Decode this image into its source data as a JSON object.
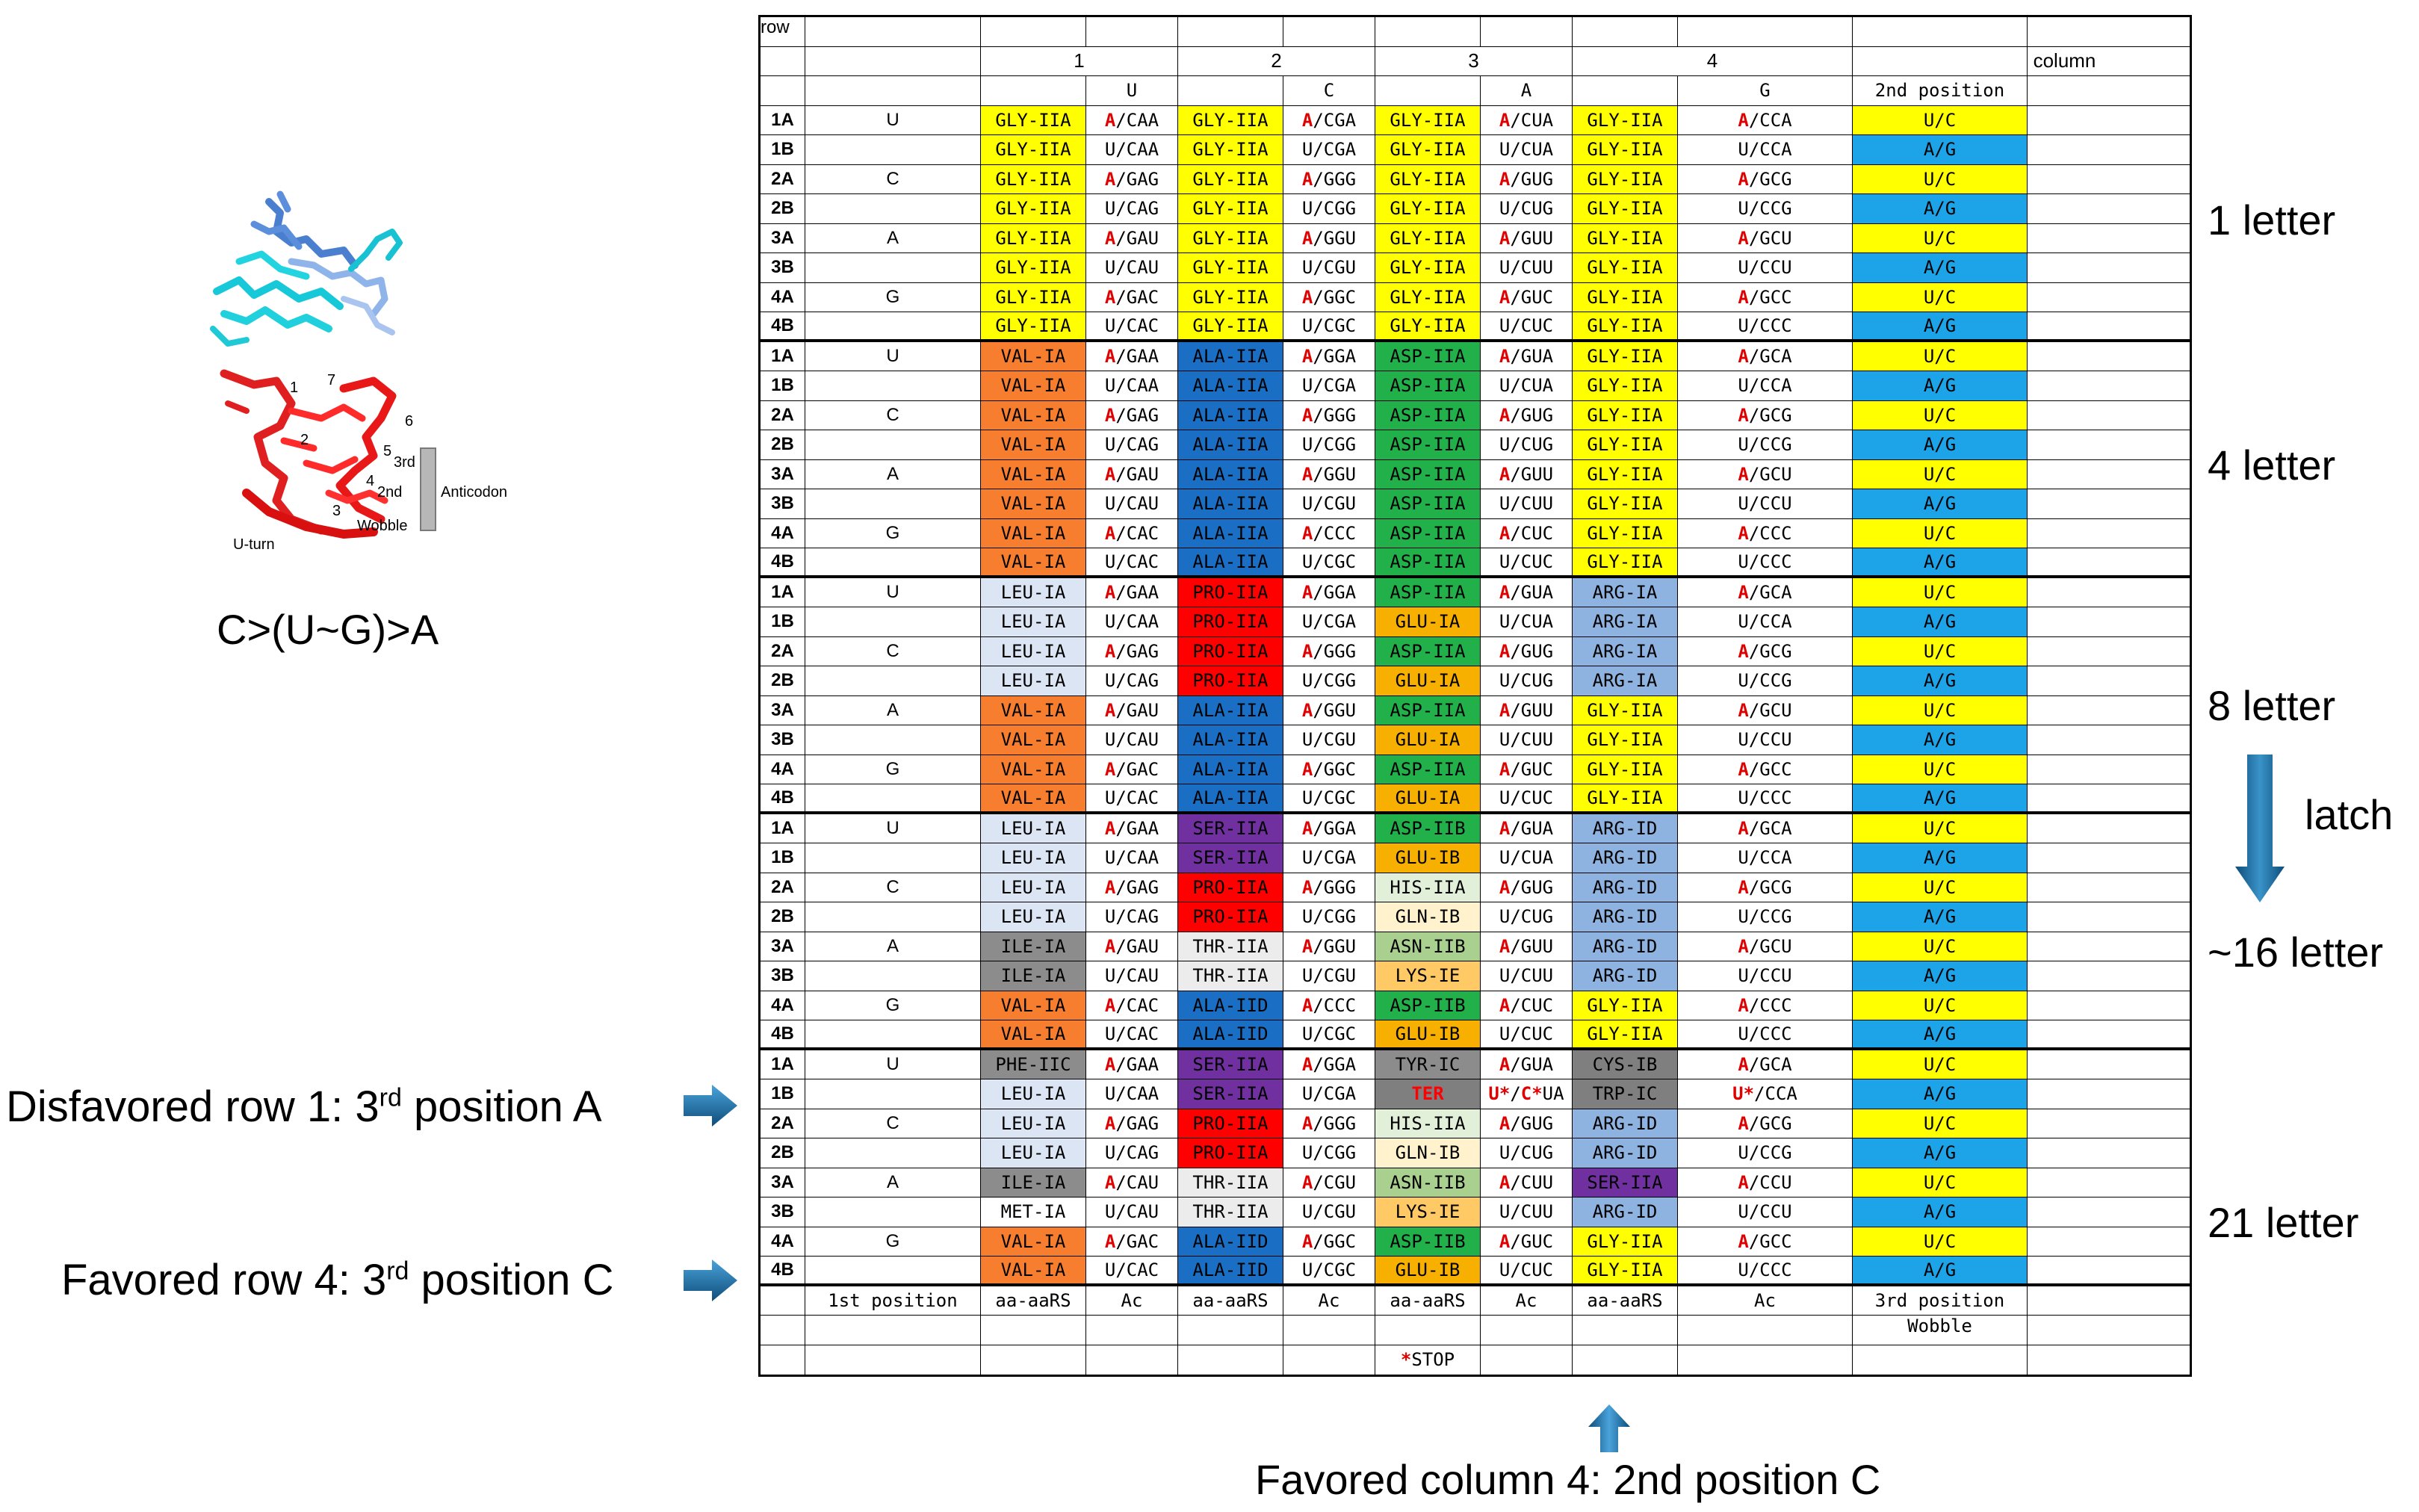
{
  "colors": {
    "GLY-IIA": "#ffff00",
    "VAL-IA": "#f77e2f",
    "ALA-IIA": "#1a6fc4",
    "ALA-IID": "#1a6fc4",
    "ASP-IIA": "#22b04a",
    "ASP-IIB": "#22b04a",
    "LEU-IA": "#dbe5f3",
    "PRO-IIA": "#ff0000",
    "GLU-IA": "#f7b000",
    "GLU-IB": "#f7b000",
    "ARG-IA": "#8fb3e0",
    "ARG-ID": "#8fb3e0",
    "SER-IIA": "#7030a0",
    "HIS-IIA": "#e2f0d9",
    "GLN-IB": "#fff2cc",
    "ILE-IA": "#8c8c8c",
    "THR-IIA": "#ececec",
    "ASN-IIB": "#a9d08e",
    "LYS-IE": "#ffc966",
    "PHE-IIC": "#8c8c8c",
    "TYR-IC": "#8c8c8c",
    "CYS-IB": "#7f7f7f",
    "TER": "#7f7f7f",
    "TRP-IC": "#7f7f7f",
    "MET-IA": "#ffffff",
    "U/C": "#ffff00",
    "A/G": "#1ca3e8"
  },
  "header": {
    "row_label": "row",
    "col_numbers": [
      "1",
      "2",
      "3",
      "4"
    ],
    "column_label": "column",
    "second_letters": [
      "U",
      "C",
      "A",
      "G"
    ],
    "second_position": "2nd position",
    "footer": [
      "1st position",
      "aa-aaRS",
      "Ac",
      "aa-aaRS",
      "Ac",
      "aa-aaRS",
      "Ac",
      "aa-aaRS",
      "Ac",
      "3rd position"
    ],
    "wobble": "Wobble",
    "stop": "*STOP"
  },
  "rows": [
    "1A",
    "1B",
    "2A",
    "2B",
    "3A",
    "3B",
    "4A",
    "4B"
  ],
  "first_pos": [
    "U",
    "",
    "C",
    "",
    "A",
    "",
    "G",
    ""
  ],
  "third": [
    "U/C",
    "A/G",
    "U/C",
    "A/G",
    "U/C",
    "A/G",
    "U/C",
    "A/G"
  ],
  "blocks": [
    {
      "label": "1 letter",
      "aa": [
        [
          "GLY-IIA",
          "GLY-IIA",
          "GLY-IIA",
          "GLY-IIA"
        ],
        [
          "GLY-IIA",
          "GLY-IIA",
          "GLY-IIA",
          "GLY-IIA"
        ],
        [
          "GLY-IIA",
          "GLY-IIA",
          "GLY-IIA",
          "GLY-IIA"
        ],
        [
          "GLY-IIA",
          "GLY-IIA",
          "GLY-IIA",
          "GLY-IIA"
        ],
        [
          "GLY-IIA",
          "GLY-IIA",
          "GLY-IIA",
          "GLY-IIA"
        ],
        [
          "GLY-IIA",
          "GLY-IIA",
          "GLY-IIA",
          "GLY-IIA"
        ],
        [
          "GLY-IIA",
          "GLY-IIA",
          "GLY-IIA",
          "GLY-IIA"
        ],
        [
          "GLY-IIA",
          "GLY-IIA",
          "GLY-IIA",
          "GLY-IIA"
        ]
      ],
      "ac": [
        [
          "A/CAA",
          "A/CGA",
          "A/CUA",
          "A/CCA"
        ],
        [
          "U/CAA",
          "U/CGA",
          "U/CUA",
          "U/CCA"
        ],
        [
          "A/GAG",
          "A/GGG",
          "A/GUG",
          "A/GCG"
        ],
        [
          "U/CAG",
          "U/CGG",
          "U/CUG",
          "U/CCG"
        ],
        [
          "A/GAU",
          "A/GGU",
          "A/GUU",
          "A/GCU"
        ],
        [
          "U/CAU",
          "U/CGU",
          "U/CUU",
          "U/CCU"
        ],
        [
          "A/GAC",
          "A/GGC",
          "A/GUC",
          "A/GCC"
        ],
        [
          "U/CAC",
          "U/CGC",
          "U/CUC",
          "U/CCC"
        ]
      ]
    },
    {
      "label": "4 letter",
      "aa": [
        [
          "VAL-IA",
          "ALA-IIA",
          "ASP-IIA",
          "GLY-IIA"
        ],
        [
          "VAL-IA",
          "ALA-IIA",
          "ASP-IIA",
          "GLY-IIA"
        ],
        [
          "VAL-IA",
          "ALA-IIA",
          "ASP-IIA",
          "GLY-IIA"
        ],
        [
          "VAL-IA",
          "ALA-IIA",
          "ASP-IIA",
          "GLY-IIA"
        ],
        [
          "VAL-IA",
          "ALA-IIA",
          "ASP-IIA",
          "GLY-IIA"
        ],
        [
          "VAL-IA",
          "ALA-IIA",
          "ASP-IIA",
          "GLY-IIA"
        ],
        [
          "VAL-IA",
          "ALA-IIA",
          "ASP-IIA",
          "GLY-IIA"
        ],
        [
          "VAL-IA",
          "ALA-IIA",
          "ASP-IIA",
          "GLY-IIA"
        ]
      ],
      "ac": [
        [
          "A/GAA",
          "A/GGA",
          "A/GUA",
          "A/GCA"
        ],
        [
          "U/CAA",
          "U/CGA",
          "U/CUA",
          "U/CCA"
        ],
        [
          "A/GAG",
          "A/GGG",
          "A/GUG",
          "A/GCG"
        ],
        [
          "U/CAG",
          "U/CGG",
          "U/CUG",
          "U/CCG"
        ],
        [
          "A/GAU",
          "A/GGU",
          "A/GUU",
          "A/GCU"
        ],
        [
          "U/CAU",
          "U/CGU",
          "U/CUU",
          "U/CCU"
        ],
        [
          "A/CAC",
          "A/CCC",
          "A/CUC",
          "A/CCC"
        ],
        [
          "U/CAC",
          "U/CGC",
          "U/CUC",
          "U/CCC"
        ]
      ]
    },
    {
      "label": "8 letter",
      "aa": [
        [
          "LEU-IA",
          "PRO-IIA",
          "ASP-IIA",
          "ARG-IA"
        ],
        [
          "LEU-IA",
          "PRO-IIA",
          "GLU-IA",
          "ARG-IA"
        ],
        [
          "LEU-IA",
          "PRO-IIA",
          "ASP-IIA",
          "ARG-IA"
        ],
        [
          "LEU-IA",
          "PRO-IIA",
          "GLU-IA",
          "ARG-IA"
        ],
        [
          "VAL-IA",
          "ALA-IIA",
          "ASP-IIA",
          "GLY-IIA"
        ],
        [
          "VAL-IA",
          "ALA-IIA",
          "GLU-IA",
          "GLY-IIA"
        ],
        [
          "VAL-IA",
          "ALA-IIA",
          "ASP-IIA",
          "GLY-IIA"
        ],
        [
          "VAL-IA",
          "ALA-IIA",
          "GLU-IA",
          "GLY-IIA"
        ]
      ],
      "ac": [
        [
          "A/GAA",
          "A/GGA",
          "A/GUA",
          "A/GCA"
        ],
        [
          "U/CAA",
          "U/CGA",
          "U/CUA",
          "U/CCA"
        ],
        [
          "A/GAG",
          "A/GGG",
          "A/GUG",
          "A/GCG"
        ],
        [
          "U/CAG",
          "U/CGG",
          "U/CUG",
          "U/CCG"
        ],
        [
          "A/GAU",
          "A/GGU",
          "A/GUU",
          "A/GCU"
        ],
        [
          "U/CAU",
          "U/CGU",
          "U/CUU",
          "U/CCU"
        ],
        [
          "A/GAC",
          "A/GGC",
          "A/GUC",
          "A/GCC"
        ],
        [
          "U/CAC",
          "U/CGC",
          "U/CUC",
          "U/CCC"
        ]
      ]
    },
    {
      "label": "~16 letter",
      "aa": [
        [
          "LEU-IA",
          "SER-IIA",
          "ASP-IIB",
          "ARG-ID"
        ],
        [
          "LEU-IA",
          "SER-IIA",
          "GLU-IB",
          "ARG-ID"
        ],
        [
          "LEU-IA",
          "PRO-IIA",
          "HIS-IIA",
          "ARG-ID"
        ],
        [
          "LEU-IA",
          "PRO-IIA",
          "GLN-IB",
          "ARG-ID"
        ],
        [
          "ILE-IA",
          "THR-IIA",
          "ASN-IIB",
          "ARG-ID"
        ],
        [
          "ILE-IA",
          "THR-IIA",
          "LYS-IE",
          "ARG-ID"
        ],
        [
          "VAL-IA",
          "ALA-IID",
          "ASP-IIB",
          "GLY-IIA"
        ],
        [
          "VAL-IA",
          "ALA-IID",
          "GLU-IB",
          "GLY-IIA"
        ]
      ],
      "ac": [
        [
          "A/GAA",
          "A/GGA",
          "A/GUA",
          "A/GCA"
        ],
        [
          "U/CAA",
          "U/CGA",
          "U/CUA",
          "U/CCA"
        ],
        [
          "A/GAG",
          "A/GGG",
          "A/GUG",
          "A/GCG"
        ],
        [
          "U/CAG",
          "U/CGG",
          "U/CUG",
          "U/CCG"
        ],
        [
          "A/GAU",
          "A/GGU",
          "A/GUU",
          "A/GCU"
        ],
        [
          "U/CAU",
          "U/CGU",
          "U/CUU",
          "U/CCU"
        ],
        [
          "A/CAC",
          "A/CCC",
          "A/CUC",
          "A/CCC"
        ],
        [
          "U/CAC",
          "U/CGC",
          "U/CUC",
          "U/CCC"
        ]
      ]
    },
    {
      "label": "21 letter",
      "aa": [
        [
          "PHE-IIC",
          "SER-IIA",
          "TYR-IC",
          "CYS-IB"
        ],
        [
          "LEU-IA",
          "SER-IIA",
          "TER",
          "TRP-IC"
        ],
        [
          "LEU-IA",
          "PRO-IIA",
          "HIS-IIA",
          "ARG-ID"
        ],
        [
          "LEU-IA",
          "PRO-IIA",
          "GLN-IB",
          "ARG-ID"
        ],
        [
          "ILE-IA",
          "THR-IIA",
          "ASN-IIB",
          "SER-IIA"
        ],
        [
          "MET-IA",
          "THR-IIA",
          "LYS-IE",
          "ARG-ID"
        ],
        [
          "VAL-IA",
          "ALA-IID",
          "ASP-IIB",
          "GLY-IIA"
        ],
        [
          "VAL-IA",
          "ALA-IID",
          "GLU-IB",
          "GLY-IIA"
        ]
      ],
      "ac": [
        [
          "A/GAA",
          "A/GGA",
          "A/GUA",
          "A/GCA"
        ],
        [
          "U/CAA",
          "U/CGA",
          "U*/C*UA",
          "U*/CCA"
        ],
        [
          "A/GAG",
          "A/GGG",
          "A/GUG",
          "A/GCG"
        ],
        [
          "U/CAG",
          "U/CGG",
          "U/CUG",
          "U/CCG"
        ],
        [
          "A/CAU",
          "A/CGU",
          "A/CUU",
          "A/CCU"
        ],
        [
          "U/CAU",
          "U/CGU",
          "U/CUU",
          "U/CCU"
        ],
        [
          "A/GAC",
          "A/GGC",
          "A/GUC",
          "A/GCC"
        ],
        [
          "U/CAC",
          "U/CGC",
          "U/CUC",
          "U/CCC"
        ]
      ]
    }
  ],
  "left_panel": {
    "rule": "C>(U~G)>A",
    "molecule_labels": {
      "n1": "1",
      "n2": "2",
      "n3": "3",
      "n4": "4",
      "n5": "5",
      "n6": "6",
      "n7": "7",
      "third": "3rd",
      "second": "2nd",
      "wobble": "Wobble",
      "uturn": "U-turn",
      "anticodon": "Anticodon"
    }
  },
  "annotations": {
    "latch": "latch",
    "disfavored_prefix": "Disfavored row 1: 3",
    "disfavored_sup": "rd",
    "disfavored_suffix": " position A",
    "favored_prefix": "Favored row 4: 3",
    "favored_sup": "rd",
    "favored_suffix": " position C",
    "favored_col": "Favored column 4: 2nd position C"
  }
}
